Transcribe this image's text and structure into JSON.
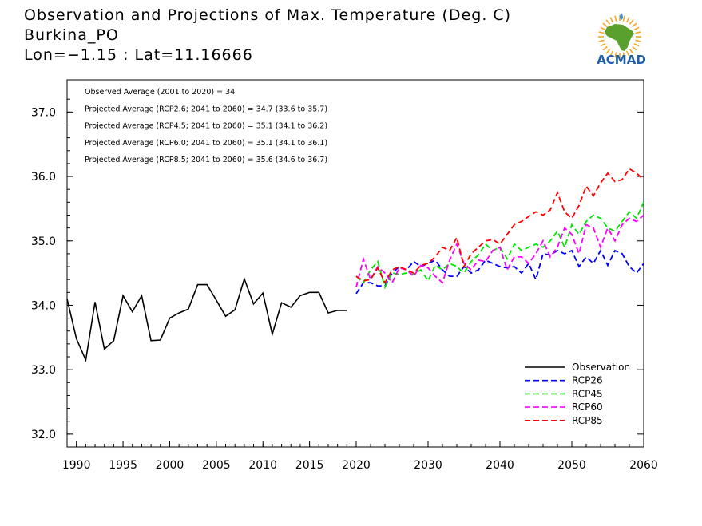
{
  "header": {
    "title": "Observation and Projections of Max. Temperature (Deg. C)",
    "location": "Burkina_PO",
    "coords": "Lon=−1.15 : Lat=11.16666"
  },
  "logo": {
    "text": "ACMAD",
    "icon": "africa-map-logo",
    "colors": {
      "africa": "#5aa02c",
      "rays": "#f5a623",
      "text": "#1f5fa8",
      "drop": "#3d8fd6"
    }
  },
  "chart_data": {
    "type": "line",
    "title": "Observation and Projections of Max. Temperature (Deg. C)",
    "xlabel": "",
    "ylabel": "",
    "xlim": [
      1989,
      2060
    ],
    "ylim": [
      31.8,
      37.5
    ],
    "grid": false,
    "x_ticks_early": [
      1990,
      1995,
      2000,
      2005,
      2010,
      2015,
      2020
    ],
    "x_ticks_late": [
      2020,
      2030,
      2040,
      2050,
      2060
    ],
    "x_axis_break_year": 2020,
    "y_ticks": [
      "32.0",
      "33.0",
      "34.0",
      "35.0",
      "36.0",
      "37.0"
    ],
    "y_tick_values": [
      32,
      33,
      34,
      35,
      36,
      37
    ],
    "annotations": [
      "Observed Average (2001 to 2020) = 34",
      "Projected Average (RCP2.6; 2041 to 2060) = 34.7 (33.6 to 35.7)",
      "Projected Average (RCP4.5; 2041 to 2060) = 35.1 (34.1 to 36.2)",
      "Projected Average (RCP6.0; 2041 to 2060) = 35.1 (34.1 to 36.1)",
      "Projected Average (RCP8.5; 2041 to 2060) = 35.6 (34.6 to 36.7)"
    ],
    "legend_position": "bottom-right",
    "series": [
      {
        "name": "Observation",
        "color": "#000000",
        "dashed": false,
        "x": [
          1989,
          1990,
          1991,
          1992,
          1993,
          1994,
          1995,
          1996,
          1997,
          1998,
          1999,
          2000,
          2001,
          2002,
          2003,
          2004,
          2005,
          2006,
          2007,
          2008,
          2009,
          2010,
          2011,
          2012,
          2013,
          2014,
          2015,
          2016,
          2017,
          2018,
          2019
        ],
        "y": [
          34.1,
          33.48,
          33.15,
          34.05,
          33.32,
          33.45,
          34.15,
          33.9,
          34.15,
          33.45,
          33.46,
          33.8,
          33.88,
          33.94,
          34.32,
          34.32,
          34.08,
          33.83,
          33.93,
          34.41,
          34.02,
          34.19,
          33.55,
          34.04,
          33.97,
          34.15,
          34.2,
          34.2,
          33.88,
          33.92,
          33.92
        ]
      },
      {
        "name": "RCP26",
        "color": "#0000ff",
        "dashed": true,
        "x": [
          2020,
          2021,
          2022,
          2023,
          2024,
          2025,
          2026,
          2027,
          2028,
          2029,
          2030,
          2031,
          2032,
          2033,
          2034,
          2035,
          2036,
          2037,
          2038,
          2039,
          2040,
          2041,
          2042,
          2043,
          2044,
          2045,
          2046,
          2047,
          2048,
          2049,
          2050,
          2051,
          2052,
          2053,
          2054,
          2055,
          2056,
          2057,
          2058,
          2059,
          2060
        ],
        "y": [
          34.18,
          34.35,
          34.35,
          34.3,
          34.3,
          34.5,
          34.6,
          34.55,
          34.68,
          34.6,
          34.65,
          34.7,
          34.55,
          34.45,
          34.45,
          34.6,
          34.5,
          34.55,
          34.7,
          34.65,
          34.6,
          34.58,
          34.6,
          34.5,
          34.65,
          34.4,
          34.8,
          34.78,
          34.85,
          34.8,
          34.85,
          34.6,
          34.75,
          34.65,
          34.85,
          34.62,
          34.85,
          34.8,
          34.6,
          34.5,
          34.65
        ]
      },
      {
        "name": "RCP45",
        "color": "#00e600",
        "dashed": true,
        "x": [
          2020,
          2021,
          2022,
          2023,
          2024,
          2025,
          2026,
          2027,
          2028,
          2029,
          2030,
          2031,
          2032,
          2033,
          2034,
          2035,
          2036,
          2037,
          2038,
          2039,
          2040,
          2041,
          2042,
          2043,
          2044,
          2045,
          2046,
          2047,
          2048,
          2049,
          2050,
          2051,
          2052,
          2053,
          2054,
          2055,
          2056,
          2057,
          2058,
          2059,
          2060
        ],
        "y": [
          34.45,
          34.35,
          34.55,
          34.68,
          34.28,
          34.5,
          34.48,
          34.5,
          34.48,
          34.55,
          34.38,
          34.62,
          34.55,
          34.65,
          34.6,
          34.5,
          34.68,
          34.78,
          34.95,
          34.85,
          34.9,
          34.72,
          34.95,
          34.85,
          34.9,
          34.95,
          34.9,
          35.0,
          35.15,
          34.9,
          35.25,
          35.1,
          35.3,
          35.4,
          35.35,
          35.2,
          35.15,
          35.3,
          35.45,
          35.35,
          35.6
        ]
      },
      {
        "name": "RCP60",
        "color": "#ff00ff",
        "dashed": true,
        "x": [
          2020,
          2021,
          2022,
          2023,
          2024,
          2025,
          2026,
          2027,
          2028,
          2029,
          2030,
          2031,
          2032,
          2033,
          2034,
          2035,
          2036,
          2037,
          2038,
          2039,
          2040,
          2041,
          2042,
          2043,
          2044,
          2045,
          2046,
          2047,
          2048,
          2049,
          2050,
          2051,
          2052,
          2053,
          2054,
          2055,
          2056,
          2057,
          2058,
          2059,
          2060
        ],
        "y": [
          34.28,
          34.72,
          34.4,
          34.6,
          34.5,
          34.35,
          34.58,
          34.55,
          34.45,
          34.62,
          34.58,
          34.45,
          34.35,
          34.7,
          34.95,
          34.65,
          34.55,
          34.7,
          34.68,
          34.85,
          34.9,
          34.55,
          34.75,
          34.75,
          34.65,
          34.8,
          35.0,
          34.75,
          34.9,
          35.2,
          35.1,
          34.8,
          35.25,
          35.2,
          34.9,
          35.2,
          35.0,
          35.25,
          35.35,
          35.3,
          35.4
        ]
      },
      {
        "name": "RCP85",
        "color": "#ff0000",
        "dashed": true,
        "x": [
          2020,
          2021,
          2022,
          2023,
          2024,
          2025,
          2026,
          2027,
          2028,
          2029,
          2030,
          2031,
          2032,
          2033,
          2034,
          2035,
          2036,
          2037,
          2038,
          2039,
          2040,
          2041,
          2042,
          2043,
          2044,
          2045,
          2046,
          2047,
          2048,
          2049,
          2050,
          2051,
          2052,
          2053,
          2054,
          2055,
          2056,
          2057,
          2058,
          2059,
          2060
        ],
        "y": [
          34.45,
          34.38,
          34.4,
          34.58,
          34.35,
          34.55,
          34.6,
          34.55,
          34.5,
          34.62,
          34.65,
          34.75,
          34.9,
          34.85,
          35.05,
          34.6,
          34.8,
          34.9,
          35.0,
          35.02,
          34.95,
          35.1,
          35.25,
          35.3,
          35.38,
          35.45,
          35.4,
          35.48,
          35.75,
          35.45,
          35.35,
          35.55,
          35.85,
          35.7,
          35.9,
          36.05,
          35.92,
          35.95,
          36.12,
          36.05,
          35.95
        ]
      }
    ]
  }
}
